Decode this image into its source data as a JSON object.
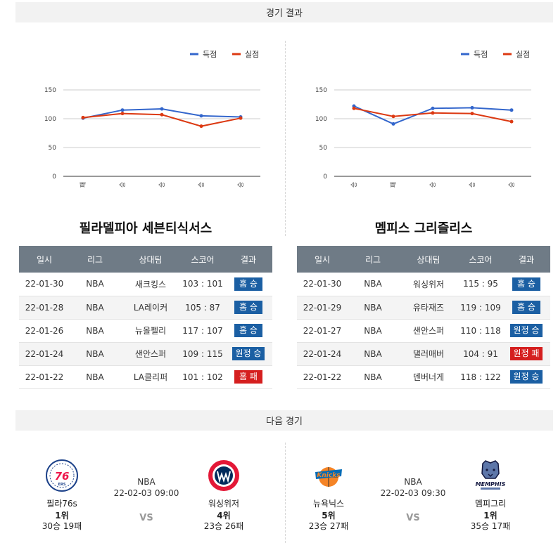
{
  "headers": {
    "results": "경기 결과",
    "next": "다음 경기"
  },
  "legend": {
    "scored": "득점",
    "conceded": "실점"
  },
  "colors": {
    "scored": "#3366cc",
    "conceded": "#dc3912",
    "win": "#1b5fa3",
    "loss": "#d51f1f",
    "table_header": "#6f7b86"
  },
  "chart_data": [
    {
      "type": "line",
      "categories": [
        "패",
        "승",
        "승",
        "승",
        "승"
      ],
      "ylim": [
        0,
        150
      ],
      "yticks": [
        0,
        50,
        100,
        150
      ],
      "grid": true,
      "legend_position": "top-right",
      "series": [
        {
          "name": "득점",
          "values": [
            101,
            115,
            117,
            105,
            103
          ]
        },
        {
          "name": "실점",
          "values": [
            102,
            109,
            107,
            87,
            101
          ]
        }
      ]
    },
    {
      "type": "line",
      "categories": [
        "승",
        "패",
        "승",
        "승",
        "승"
      ],
      "ylim": [
        0,
        150
      ],
      "yticks": [
        0,
        50,
        100,
        150
      ],
      "grid": true,
      "legend_position": "top-right",
      "series": [
        {
          "name": "득점",
          "values": [
            122,
            91,
            118,
            119,
            115
          ]
        },
        {
          "name": "실점",
          "values": [
            118,
            104,
            110,
            109,
            95
          ]
        }
      ]
    }
  ],
  "tables": {
    "columns": [
      "일시",
      "리그",
      "상대팀",
      "스코어",
      "결과"
    ],
    "left": {
      "team": "필라델피아 세븐티식서스",
      "rows": [
        {
          "date": "22-01-30",
          "league": "NBA",
          "opponent": "새크킹스",
          "score": "103 : 101",
          "result": "홈 승",
          "win": true
        },
        {
          "date": "22-01-28",
          "league": "NBA",
          "opponent": "LA레이커",
          "score": "105 : 87",
          "result": "홈 승",
          "win": true
        },
        {
          "date": "22-01-26",
          "league": "NBA",
          "opponent": "뉴올펠리",
          "score": "117 : 107",
          "result": "홈 승",
          "win": true
        },
        {
          "date": "22-01-24",
          "league": "NBA",
          "opponent": "샌안스퍼",
          "score": "109 : 115",
          "result": "원정 승",
          "win": true
        },
        {
          "date": "22-01-22",
          "league": "NBA",
          "opponent": "LA클리퍼",
          "score": "101 : 102",
          "result": "홈 패",
          "win": false
        }
      ]
    },
    "right": {
      "team": "멤피스 그리즐리스",
      "rows": [
        {
          "date": "22-01-30",
          "league": "NBA",
          "opponent": "워싱위저",
          "score": "115 : 95",
          "result": "홈 승",
          "win": true
        },
        {
          "date": "22-01-29",
          "league": "NBA",
          "opponent": "유타재즈",
          "score": "119 : 109",
          "result": "홈 승",
          "win": true
        },
        {
          "date": "22-01-27",
          "league": "NBA",
          "opponent": "샌안스퍼",
          "score": "110 : 118",
          "result": "원정 승",
          "win": true
        },
        {
          "date": "22-01-24",
          "league": "NBA",
          "opponent": "댈러매버",
          "score": "104 : 91",
          "result": "원정 패",
          "win": false
        },
        {
          "date": "22-01-22",
          "league": "NBA",
          "opponent": "덴버너게",
          "score": "118 : 122",
          "result": "원정 승",
          "win": true
        }
      ]
    }
  },
  "next_games": [
    {
      "league": "NBA",
      "datetime": "22-02-03 09:00",
      "vs": "VS",
      "home": {
        "name": "필라76s",
        "rank": "1위",
        "record": "30승 19패",
        "logo": "sixers-logo"
      },
      "away": {
        "name": "워싱위저",
        "rank": "4위",
        "record": "23승 26패",
        "logo": "wizards-logo"
      }
    },
    {
      "league": "NBA",
      "datetime": "22-02-03 09:30",
      "vs": "VS",
      "home": {
        "name": "뉴욕닉스",
        "rank": "5위",
        "record": "23승 27패",
        "logo": "knicks-logo"
      },
      "away": {
        "name": "멤피그리",
        "rank": "1위",
        "record": "35승 17패",
        "logo": "grizzlies-logo"
      }
    }
  ]
}
